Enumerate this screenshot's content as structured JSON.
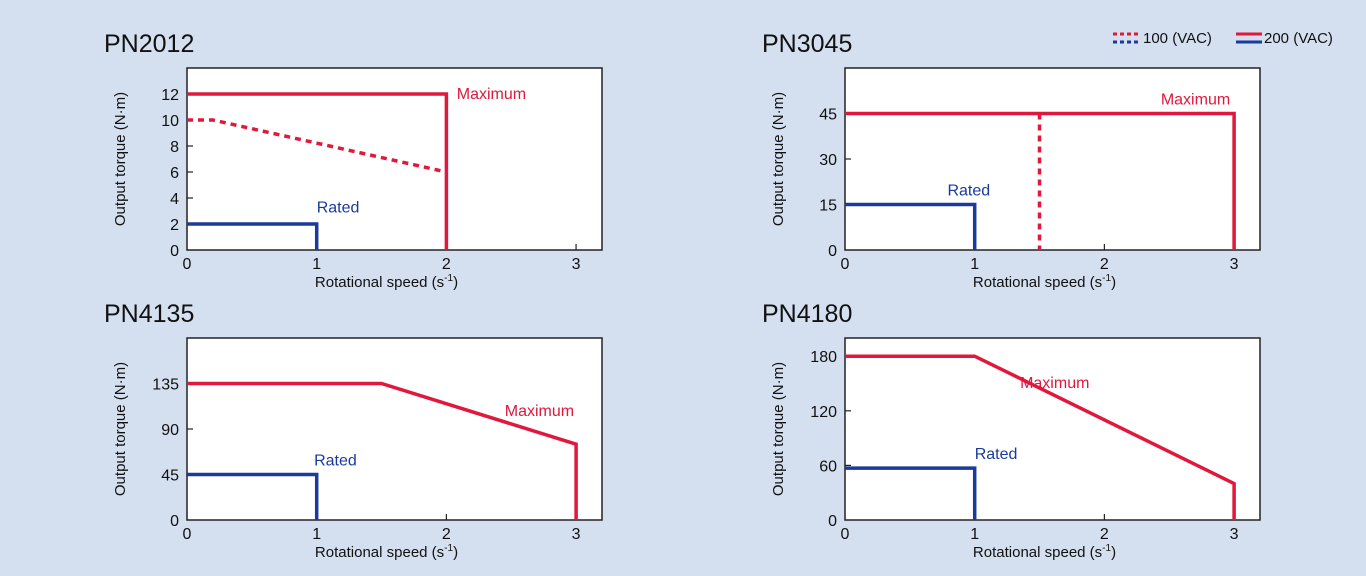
{
  "legend": {
    "dashed_label": "100 (VAC)",
    "solid_label": "200 (VAC)",
    "color_max": "#e0183c",
    "color_rated": "#1a3a9c"
  },
  "chart_data": [
    {
      "type": "line",
      "title": "PN2012",
      "xlabel_main": "Rotational speed (s",
      "xlabel_sup": "-1",
      "xlabel_end": ")",
      "ylabel": "Output torque (N·m)",
      "xlim": [
        0,
        3.2
      ],
      "ylim": [
        0,
        14
      ],
      "xticks": [
        0,
        1,
        2,
        3
      ],
      "yticks": [
        0,
        2,
        4,
        6,
        8,
        10,
        12
      ],
      "series": [
        {
          "name": "Maximum",
          "style": "solid",
          "color": "#e0183c",
          "points": [
            [
              0,
              12
            ],
            [
              2,
              12
            ],
            [
              2,
              0
            ]
          ]
        },
        {
          "style": "dashed",
          "color": "#e0183c",
          "points": [
            [
              0,
              10
            ],
            [
              0.2,
              10
            ],
            [
              2,
              6
            ]
          ]
        },
        {
          "name": "Rated",
          "style": "solid",
          "color": "#1a3a9c",
          "points": [
            [
              0,
              2
            ],
            [
              1,
              2
            ],
            [
              1,
              0
            ]
          ]
        }
      ],
      "annotations": [
        {
          "text": "Maximum",
          "x": 2.08,
          "y": 11.6,
          "color": "#e0183c",
          "anchor": "start"
        },
        {
          "text": "Rated",
          "x": 1.0,
          "y": 2.9,
          "color": "#1a3a9c",
          "anchor": "start"
        }
      ]
    },
    {
      "type": "line",
      "title": "PN3045",
      "xlabel_main": "Rotational speed (s",
      "xlabel_sup": "-1",
      "xlabel_end": ")",
      "ylabel": "Output torque (N·m)",
      "xlim": [
        0,
        3.2
      ],
      "ylim": [
        0,
        60
      ],
      "xticks": [
        0,
        1,
        2,
        3
      ],
      "yticks": [
        0,
        15,
        30,
        45
      ],
      "series": [
        {
          "name": "Maximum",
          "style": "solid",
          "color": "#e0183c",
          "points": [
            [
              0,
              45
            ],
            [
              3,
              45
            ],
            [
              3,
              0
            ]
          ]
        },
        {
          "style": "dashed",
          "color": "#e0183c",
          "points": [
            [
              1.5,
              45
            ],
            [
              1.5,
              0
            ]
          ]
        },
        {
          "name": "Rated",
          "style": "solid",
          "color": "#1a3a9c",
          "points": [
            [
              0,
              15
            ],
            [
              1,
              15
            ],
            [
              1,
              0
            ]
          ]
        }
      ],
      "annotations": [
        {
          "text": "Maximum",
          "x": 2.97,
          "y": 48,
          "color": "#e0183c",
          "anchor": "end"
        },
        {
          "text": "Rated",
          "x": 0.79,
          "y": 18,
          "color": "#1a3a9c",
          "anchor": "start"
        }
      ]
    },
    {
      "type": "line",
      "title": "PN4135",
      "xlabel_main": "Rotational speed (s",
      "xlabel_sup": "-1",
      "xlabel_end": ")",
      "ylabel": "Output torque (N·m)",
      "xlim": [
        0,
        3.2
      ],
      "ylim": [
        0,
        180
      ],
      "xticks": [
        0,
        1,
        2,
        3
      ],
      "yticks": [
        0,
        45,
        90,
        135
      ],
      "series": [
        {
          "name": "Maximum",
          "style": "solid",
          "color": "#e0183c",
          "points": [
            [
              0,
              135
            ],
            [
              1.5,
              135
            ],
            [
              3,
              75
            ],
            [
              3,
              0
            ]
          ]
        },
        {
          "name": "Rated",
          "style": "solid",
          "color": "#1a3a9c",
          "points": [
            [
              0,
              45
            ],
            [
              1,
              45
            ],
            [
              1,
              0
            ]
          ]
        }
      ],
      "annotations": [
        {
          "text": "Maximum",
          "x": 2.45,
          "y": 103,
          "color": "#e0183c",
          "anchor": "start"
        },
        {
          "text": "Rated",
          "x": 0.98,
          "y": 54,
          "color": "#1a3a9c",
          "anchor": "start"
        }
      ]
    },
    {
      "type": "line",
      "title": "PN4180",
      "xlabel_main": "Rotational speed (s",
      "xlabel_sup": "-1",
      "xlabel_end": ")",
      "ylabel": "Output torque (N·m)",
      "xlim": [
        0,
        3.2
      ],
      "ylim": [
        0,
        200
      ],
      "xticks": [
        0,
        1,
        2,
        3
      ],
      "yticks": [
        0,
        60,
        120,
        180
      ],
      "series": [
        {
          "name": "Maximum",
          "style": "solid",
          "color": "#e0183c",
          "points": [
            [
              0,
              180
            ],
            [
              1,
              180
            ],
            [
              3,
              40
            ],
            [
              3,
              0
            ]
          ]
        },
        {
          "name": "Rated",
          "style": "solid",
          "color": "#1a3a9c",
          "points": [
            [
              0,
              57
            ],
            [
              1,
              57
            ],
            [
              1,
              0
            ]
          ]
        }
      ],
      "annotations": [
        {
          "text": "Maximum",
          "x": 1.35,
          "y": 145,
          "color": "#e0183c",
          "anchor": "start"
        },
        {
          "text": "Rated",
          "x": 1.0,
          "y": 67,
          "color": "#1a3a9c",
          "anchor": "start"
        }
      ]
    }
  ]
}
